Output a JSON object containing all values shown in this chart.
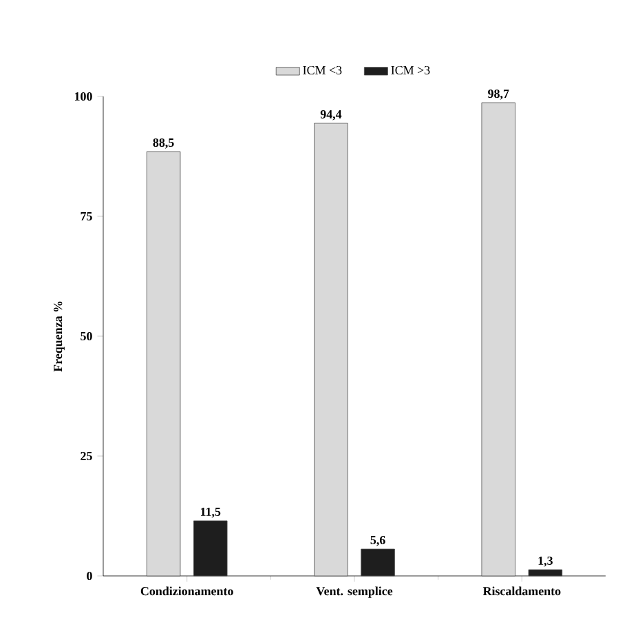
{
  "chart_data": {
    "type": "bar",
    "ylabel": "Frequenza %",
    "categories": [
      "Condizionamento",
      "Vent. semplice",
      "Riscaldamento"
    ],
    "series": [
      {
        "name": "ICM <3",
        "color": "#d9d9d9",
        "values": [
          88.5,
          94.4,
          98.7
        ],
        "value_labels": [
          "88,5",
          "94,4",
          "98,7"
        ]
      },
      {
        "name": "ICM >3",
        "color": "#1e1e1e",
        "values": [
          11.5,
          5.6,
          1.3
        ],
        "value_labels": [
          "11,5",
          "5,6",
          "1,3"
        ]
      }
    ],
    "ylim": [
      0,
      100
    ],
    "yticks": [
      0,
      25,
      50,
      75,
      100
    ],
    "grid": false,
    "legend": "top"
  }
}
